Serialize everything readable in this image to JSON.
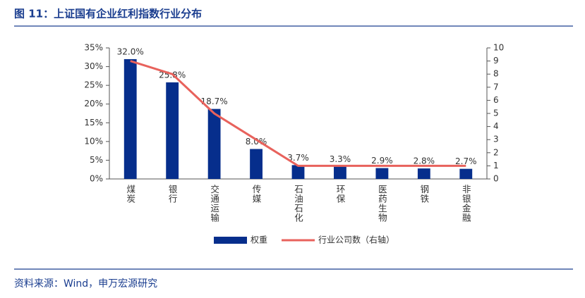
{
  "chart_data": {
    "type": "bar",
    "title": "图 11：上证国有企业红利指数行业分布",
    "source": "资料来源：Wind，申万宏源研究",
    "categories": [
      "煤炭",
      "银行",
      "交通运输",
      "传媒",
      "石油石化",
      "环保",
      "医药生物",
      "钢铁",
      "非银金融"
    ],
    "series": [
      {
        "name": "权重",
        "color": "#062e8c",
        "values": [
          32.0,
          25.8,
          18.7,
          8.0,
          3.7,
          3.3,
          2.9,
          2.8,
          2.7
        ],
        "value_labels": [
          "32.0%",
          "25.8%",
          "18.7%",
          "8.0%",
          "3.7%",
          "3.3%",
          "2.9%",
          "2.8%",
          "2.7%"
        ]
      },
      {
        "name": "行业公司数（右轴）",
        "type": "line",
        "axis": "y2",
        "color": "#e8625c",
        "values": [
          9,
          8,
          5,
          3,
          1,
          1,
          1,
          1,
          1
        ]
      }
    ],
    "ylim": [
      0,
      35
    ],
    "yticks": [
      {
        "value": 0,
        "label": "0%"
      },
      {
        "value": 5,
        "label": "5%"
      },
      {
        "value": 10,
        "label": "10%"
      },
      {
        "value": 15,
        "label": "15%"
      },
      {
        "value": 20,
        "label": "20%"
      },
      {
        "value": 25,
        "label": "25%"
      },
      {
        "value": 30,
        "label": "30%"
      },
      {
        "value": 35,
        "label": "35%"
      }
    ],
    "y2lim": [
      0,
      10
    ],
    "y2ticks": [
      0,
      1,
      2,
      3,
      4,
      5,
      6,
      7,
      8,
      9,
      10
    ]
  }
}
